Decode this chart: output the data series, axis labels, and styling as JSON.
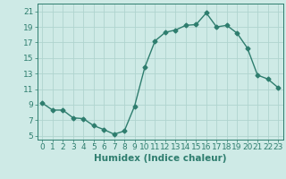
{
  "x": [
    0,
    1,
    2,
    3,
    4,
    5,
    6,
    7,
    8,
    9,
    10,
    11,
    12,
    13,
    14,
    15,
    16,
    17,
    18,
    19,
    20,
    21,
    22,
    23
  ],
  "y": [
    9.2,
    8.3,
    8.3,
    7.3,
    7.2,
    6.3,
    5.8,
    5.2,
    5.6,
    8.8,
    13.8,
    17.2,
    18.3,
    18.6,
    19.2,
    19.3,
    20.8,
    19.0,
    19.2,
    18.2,
    16.3,
    12.8,
    12.3,
    11.2
  ],
  "line_color": "#2e7d6e",
  "marker": "D",
  "marker_size": 2.5,
  "line_width": 1.0,
  "xlabel": "Humidex (Indice chaleur)",
  "xlim": [
    -0.5,
    23.5
  ],
  "ylim": [
    4.5,
    22
  ],
  "yticks": [
    5,
    7,
    9,
    11,
    13,
    15,
    17,
    19,
    21
  ],
  "xticks": [
    0,
    1,
    2,
    3,
    4,
    5,
    6,
    7,
    8,
    9,
    10,
    11,
    12,
    13,
    14,
    15,
    16,
    17,
    18,
    19,
    20,
    21,
    22,
    23
  ],
  "xtick_labels": [
    "0",
    "1",
    "2",
    "3",
    "4",
    "5",
    "6",
    "7",
    "8",
    "9",
    "10",
    "11",
    "12",
    "13",
    "14",
    "15",
    "16",
    "17",
    "18",
    "19",
    "20",
    "21",
    "22",
    "23"
  ],
  "bg_color": "#ceeae6",
  "grid_color": "#afd4cf",
  "tick_color": "#2e7d6e",
  "label_color": "#2e7d6e",
  "xlabel_fontsize": 7.5,
  "tick_fontsize": 6.5
}
